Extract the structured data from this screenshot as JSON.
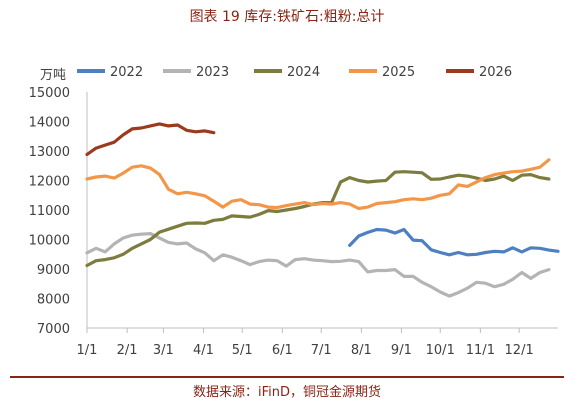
{
  "title": "图表 19 库存:铁矿石:粗粉:总计",
  "source": "数据来源：iFinD，铜冠金源期货",
  "chart_data": {
    "type": "line",
    "title": "图表 19 库存:铁矿石:粗粉:总计",
    "ylabel": "万吨",
    "xlabel": "",
    "ylim": [
      7000,
      15000
    ],
    "yticks": [
      7000,
      8000,
      9000,
      10000,
      11000,
      12000,
      13000,
      14000,
      15000
    ],
    "xlim": [
      0,
      52
    ],
    "xticks": [
      {
        "label": "1/1",
        "week": 0
      },
      {
        "label": "2/1",
        "week": 4.43
      },
      {
        "label": "3/1",
        "week": 8.43
      },
      {
        "label": "4/1",
        "week": 12.86
      },
      {
        "label": "5/1",
        "week": 17.14
      },
      {
        "label": "6/1",
        "week": 21.57
      },
      {
        "label": "7/1",
        "week": 25.86
      },
      {
        "label": "8/1",
        "week": 30.29
      },
      {
        "label": "9/1",
        "week": 34.71
      },
      {
        "label": "10/1",
        "week": 39
      },
      {
        "label": "11/1",
        "week": 43.43
      },
      {
        "label": "12/1",
        "week": 47.71
      }
    ],
    "grid": false,
    "legend": "top",
    "series": [
      {
        "name": "2022",
        "color": "#4e7fc2",
        "start_week": 29,
        "values": [
          9800,
          10120,
          10240,
          10340,
          10320,
          10220,
          10340,
          9980,
          9960,
          9650,
          9560,
          9480,
          9560,
          9480,
          9500,
          9560,
          9600,
          9580,
          9720,
          9580,
          9720,
          9700,
          9640,
          9600
        ]
      },
      {
        "name": "2023",
        "color": "#b4b4b4",
        "start_week": 0,
        "values": [
          9550,
          9700,
          9580,
          9850,
          10050,
          10150,
          10180,
          10200,
          10050,
          9900,
          9850,
          9880,
          9680,
          9550,
          9280,
          9480,
          9400,
          9280,
          9150,
          9250,
          9300,
          9280,
          9100,
          9320,
          9350,
          9300,
          9280,
          9250,
          9260,
          9300,
          9250,
          8900,
          8950,
          8950,
          8980,
          8750,
          8750,
          8550,
          8400,
          8220,
          8080,
          8200,
          8350,
          8550,
          8520,
          8400,
          8480,
          8650,
          8880,
          8680,
          8880,
          8980
        ]
      },
      {
        "name": "2024",
        "color": "#7c7c3e",
        "start_week": 0,
        "values": [
          9120,
          9280,
          9320,
          9380,
          9500,
          9700,
          9850,
          10000,
          10250,
          10350,
          10450,
          10550,
          10560,
          10550,
          10650,
          10680,
          10800,
          10780,
          10760,
          10850,
          10980,
          10950,
          11000,
          11050,
          11120,
          11200,
          11250,
          11250,
          11950,
          12100,
          12000,
          11950,
          11980,
          12000,
          12280,
          12300,
          12280,
          12260,
          12040,
          12050,
          12120,
          12180,
          12150,
          12080,
          12000,
          12050,
          12150,
          12000,
          12180,
          12200,
          12100,
          12050
        ]
      },
      {
        "name": "2025",
        "color": "#f2974a",
        "start_week": 0,
        "values": [
          12050,
          12120,
          12150,
          12080,
          12250,
          12450,
          12500,
          12420,
          12200,
          11700,
          11550,
          11600,
          11550,
          11480,
          11300,
          11100,
          11300,
          11350,
          11200,
          11180,
          11100,
          11080,
          11150,
          11200,
          11250,
          11180,
          11220,
          11200,
          11250,
          11200,
          11050,
          11100,
          11220,
          11250,
          11280,
          11350,
          11380,
          11350,
          11400,
          11500,
          11550,
          11850,
          11800,
          11950,
          12100,
          12200,
          12250,
          12300,
          12320,
          12380,
          12450,
          12700
        ]
      },
      {
        "name": "2026",
        "color": "#9b3a1e",
        "start_week": 0,
        "values": [
          12880,
          13100,
          13200,
          13300,
          13550,
          13750,
          13780,
          13850,
          13920,
          13850,
          13880,
          13700,
          13650,
          13680,
          13620
        ]
      }
    ]
  }
}
